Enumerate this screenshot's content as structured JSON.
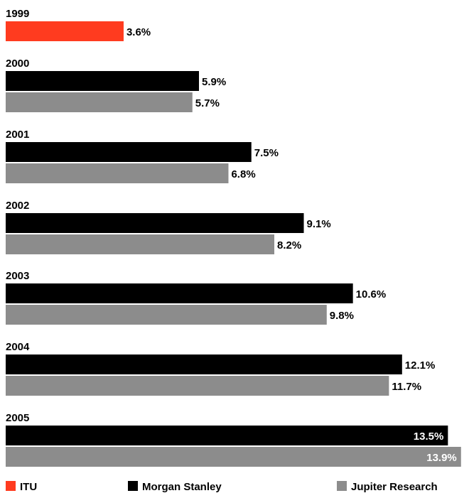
{
  "chart_data": {
    "type": "bar",
    "orientation": "horizontal",
    "categories": [
      "1999",
      "2000",
      "2001",
      "2002",
      "2003",
      "2004",
      "2005"
    ],
    "series": [
      {
        "name": "ITU",
        "color": "#ff3b1f",
        "values": [
          3.6,
          null,
          null,
          null,
          null,
          null,
          null
        ],
        "labels": [
          "3.6%",
          null,
          null,
          null,
          null,
          null,
          null
        ]
      },
      {
        "name": "Morgan Stanley",
        "color": "#000000",
        "values": [
          null,
          5.9,
          7.5,
          9.1,
          10.6,
          12.1,
          13.5
        ],
        "labels": [
          null,
          "5.9%",
          "7.5%",
          "9.1%",
          "10.6%",
          "12.1%",
          "13.5%"
        ]
      },
      {
        "name": "Jupiter Research",
        "color": "#8c8c8c",
        "values": [
          null,
          5.7,
          6.8,
          8.2,
          9.8,
          11.7,
          13.9
        ],
        "labels": [
          null,
          "5.7%",
          "6.8%",
          "8.2%",
          "9.8%",
          "11.7%",
          "13.9%"
        ]
      }
    ],
    "xlim": [
      0,
      14.1
    ],
    "grid": false,
    "legend_position": "bottom"
  }
}
